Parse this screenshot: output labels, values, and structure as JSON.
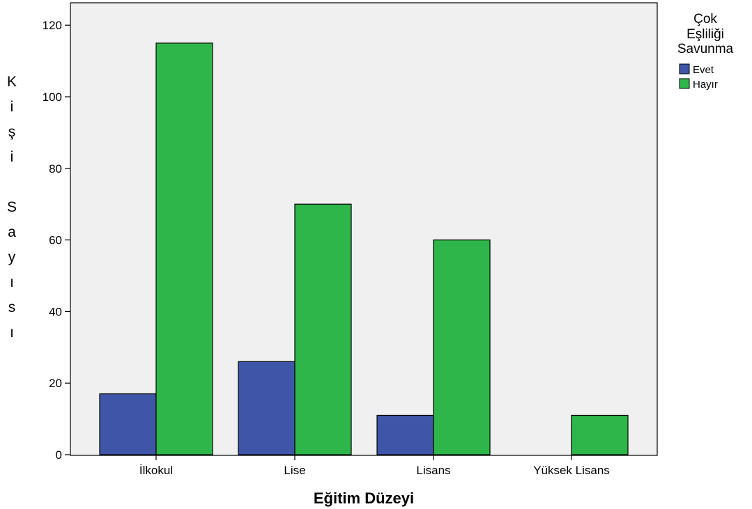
{
  "chart_data": {
    "type": "bar",
    "xlabel": "Eğitim Düzeyi",
    "ylabel": "Kişi Sayısı",
    "categories": [
      "İlkokul",
      "Lise",
      "Lisans",
      "Yüksek Lisans"
    ],
    "series": [
      {
        "name": "Evet",
        "values": [
          17,
          26,
          11,
          0
        ],
        "color": "#3f56a8"
      },
      {
        "name": "Hayır",
        "values": [
          115,
          70,
          60,
          11
        ],
        "color": "#2fb64a"
      }
    ],
    "ylim": [
      0,
      126
    ],
    "yticks": [
      0,
      20,
      40,
      60,
      80,
      100,
      120
    ],
    "grid": false,
    "legend": {
      "title_lines": [
        "Çok",
        "Eşliliği",
        "Savunma"
      ],
      "placement": "right"
    },
    "plot_background": "#f0f0f0"
  }
}
